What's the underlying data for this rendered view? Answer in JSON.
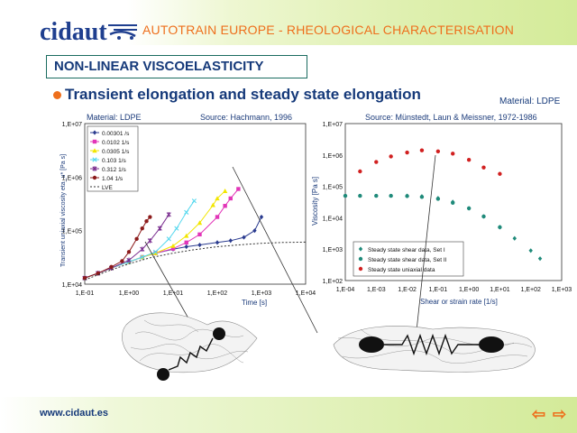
{
  "header": {
    "logo_text": "cidaut",
    "title": "AUTOTRAIN EUROPE - RHEOLOGICAL CHARACTERISATION"
  },
  "section": {
    "title": "NON-LINEAR VISCOELASTICITY",
    "bullet": "Transient elongation and steady state elongation",
    "material_label": "Material: LDPE"
  },
  "chart_left_labels": {
    "material": "Material: LDPE",
    "source": "Source: Hachmann, 1996",
    "xlabel": "Time [s]",
    "ylabel": "Transient uniaxial viscosity eta_u* [Pa s]"
  },
  "chart_right_labels": {
    "source": "Source: Münstedt, Laun & Meissner, 1972-1986",
    "xlabel": "Shear or strain rate [1/s]",
    "ylabel": "Viscosity [Pa s]"
  },
  "footer": {
    "url": "www.cidaut.es",
    "prev": "⇦",
    "next": "⇨"
  },
  "colors": {
    "accent": "#ee6f1c",
    "navy": "#163a7a",
    "logo": "#1f3f8f"
  },
  "chart_data": [
    {
      "type": "line",
      "xscale": "log",
      "yscale": "log",
      "xlim": [
        0.1,
        10000
      ],
      "ylim": [
        10000,
        10000000
      ],
      "x_ticks": [
        "1,E-01",
        "1,E+00",
        "1,E+01",
        "1,E+02",
        "1,E+03",
        "1,E+04"
      ],
      "y_ticks": [
        "1,E+04",
        "1,E+05",
        "1,E+06",
        "1,E+07"
      ],
      "series": [
        {
          "name": "0.00301 /s",
          "color": "#2a3b8f",
          "marker": "diamond",
          "x": [
            0.1,
            0.2,
            0.4,
            1,
            2,
            4,
            10,
            20,
            40,
            100,
            200,
            400,
            700,
            1000
          ],
          "y": [
            13000,
            16000,
            20000,
            26000,
            32000,
            38000,
            45000,
            50000,
            54000,
            60000,
            65000,
            75000,
            100000,
            180000
          ]
        },
        {
          "name": "0.0102 1/s",
          "color": "#e235b8",
          "marker": "square",
          "x": [
            0.1,
            0.2,
            0.4,
            1,
            2,
            4,
            10,
            20,
            40,
            100,
            150,
            200,
            300
          ],
          "y": [
            13000,
            16000,
            20000,
            26000,
            32000,
            38000,
            46000,
            60000,
            85000,
            180000,
            290000,
            400000,
            600000
          ]
        },
        {
          "name": "0.0305 1/s",
          "color": "#f2e600",
          "marker": "triangle",
          "x": [
            0.1,
            0.2,
            0.4,
            1,
            2,
            4,
            10,
            20,
            40,
            80,
            100,
            150
          ],
          "y": [
            13000,
            16000,
            20000,
            26000,
            32000,
            38000,
            52000,
            80000,
            140000,
            300000,
            400000,
            550000
          ]
        },
        {
          "name": "0.103 1/s",
          "color": "#56d8ee",
          "marker": "x",
          "x": [
            0.1,
            0.2,
            0.4,
            1,
            2,
            4,
            8,
            12,
            20,
            30
          ],
          "y": [
            13000,
            16000,
            20000,
            26000,
            32000,
            40000,
            70000,
            110000,
            220000,
            360000
          ]
        },
        {
          "name": "0.312 1/s",
          "color": "#7a2e8f",
          "marker": "star",
          "x": [
            0.1,
            0.2,
            0.4,
            1,
            2,
            3,
            5,
            8
          ],
          "y": [
            13000,
            16000,
            20000,
            28000,
            45000,
            65000,
            110000,
            200000
          ]
        },
        {
          "name": "1.04 1/s",
          "color": "#8c1b1b",
          "marker": "circle",
          "x": [
            0.1,
            0.2,
            0.4,
            0.7,
            1,
            1.5,
            2,
            2.5,
            3
          ],
          "y": [
            13000,
            16000,
            21000,
            27000,
            40000,
            70000,
            110000,
            150000,
            180000
          ]
        },
        {
          "name": "LVE",
          "color": "#333333",
          "marker": "none",
          "dashed": true,
          "x": [
            0.1,
            0.3,
            1,
            3,
            10,
            30,
            100,
            300,
            1000,
            3000,
            10000
          ],
          "y": [
            12000,
            17000,
            24000,
            31000,
            38000,
            44000,
            50000,
            54000,
            58000,
            60000,
            61000
          ]
        }
      ]
    },
    {
      "type": "scatter",
      "xscale": "log",
      "yscale": "log",
      "xlim": [
        0.0001,
        1000
      ],
      "ylim": [
        100,
        10000000
      ],
      "x_ticks": [
        "1,E-04",
        "1,E-03",
        "1,E-02",
        "1,E-01",
        "1,E+00",
        "1,E+01",
        "1,E+02",
        "1,E+03"
      ],
      "y_ticks": [
        "1,E+02",
        "1,E+03",
        "1,E+04",
        "1,E+05",
        "1,E+06",
        "1,E+07"
      ],
      "series": [
        {
          "name": "Steady state shear data, Set I",
          "color": "#1f8a7a",
          "marker": "diamond",
          "x": [
            0.01,
            0.03,
            0.1,
            0.3,
            1,
            3,
            10,
            30,
            100,
            200
          ],
          "y": [
            50000,
            48000,
            42000,
            32000,
            20000,
            11000,
            5000,
            2200,
            900,
            500
          ]
        },
        {
          "name": "Steady state shear data, Set II",
          "color": "#1f8a7a",
          "marker": "circle",
          "x": [
            0.0001,
            0.0003,
            0.001,
            0.003,
            0.01,
            0.03,
            0.1,
            0.3,
            1,
            3,
            10
          ],
          "y": [
            50000,
            50000,
            50000,
            50000,
            49000,
            46000,
            40000,
            30000,
            20000,
            11000,
            5000
          ]
        },
        {
          "name": "Steady state uniaxial data",
          "color": "#d12020",
          "marker": "circle",
          "x": [
            0.0003,
            0.001,
            0.003,
            0.01,
            0.03,
            0.1,
            0.3,
            1,
            3,
            10
          ],
          "y": [
            300000,
            600000,
            900000,
            1200000,
            1400000,
            1300000,
            1100000,
            700000,
            400000,
            250000
          ]
        }
      ]
    }
  ]
}
